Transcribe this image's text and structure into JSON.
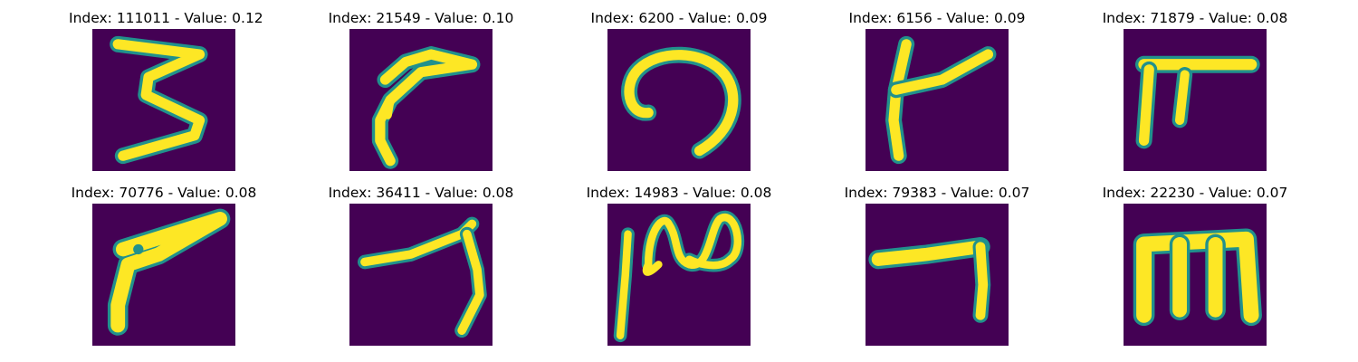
{
  "figure": {
    "background": "#ffffff",
    "cmap_background": "#440154",
    "cmap_mid": "#21918c",
    "cmap_high": "#fde725"
  },
  "panels": [
    {
      "title": "Index: 111011 - Value: 0.12",
      "glyph": "handwritten-3"
    },
    {
      "title": "Index: 21549 - Value: 0.10",
      "glyph": "handwritten-stroke"
    },
    {
      "title": "Index: 6200 - Value: 0.09",
      "glyph": "handwritten-arch"
    },
    {
      "title": "Index: 6156 - Value: 0.09",
      "glyph": "handwritten-stroke"
    },
    {
      "title": "Index: 71879 - Value: 0.08",
      "glyph": "handwritten-stroke"
    },
    {
      "title": "Index: 70776 - Value: 0.08",
      "glyph": "handwritten-stroke"
    },
    {
      "title": "Index: 36411 - Value: 0.08",
      "glyph": "handwritten-stroke"
    },
    {
      "title": "Index: 14983 - Value: 0.08",
      "glyph": "handwritten-stroke"
    },
    {
      "title": "Index: 79383 - Value: 0.07",
      "glyph": "handwritten-stroke"
    },
    {
      "title": "Index: 22230 - Value: 0.07",
      "glyph": "handwritten-m"
    }
  ]
}
